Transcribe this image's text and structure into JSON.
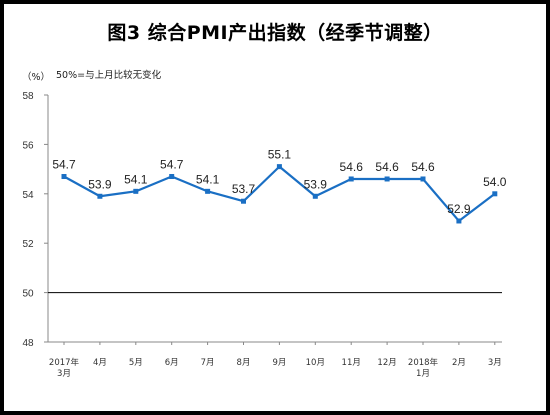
{
  "title": "图3 综合PMI产出指数（经季节调整）",
  "unit_label": "（%）",
  "reference_note": "50%=与上月比较无变化",
  "colors": {
    "line": "#1a6fc4",
    "reference": "#000000",
    "background": "#ffffff",
    "frame": "#000000"
  },
  "chart_data": {
    "type": "line",
    "categories": [
      [
        "2017年",
        "3月"
      ],
      [
        "4月"
      ],
      [
        "5月"
      ],
      [
        "6月"
      ],
      [
        "7月"
      ],
      [
        "8月"
      ],
      [
        "9月"
      ],
      [
        "10月"
      ],
      [
        "11月"
      ],
      [
        "12月"
      ],
      [
        "2018年",
        "1月"
      ],
      [
        "2月"
      ],
      [
        "3月"
      ]
    ],
    "series": [
      {
        "values": [
          54.7,
          53.9,
          54.1,
          54.7,
          54.1,
          53.7,
          55.1,
          53.9,
          54.6,
          54.6,
          54.6,
          52.9,
          54.0
        ]
      }
    ],
    "value_labels": [
      "54.7",
      "53.9",
      "54.1",
      "54.7",
      "54.1",
      "53.7",
      "55.1",
      "53.9",
      "54.6",
      "54.6",
      "54.6",
      "52.9",
      "54.0"
    ],
    "yticks": [
      "48",
      "50",
      "52",
      "54",
      "56",
      "58"
    ],
    "ylim": [
      48,
      58
    ],
    "reference_line": 50,
    "grid": false,
    "legend": false
  }
}
